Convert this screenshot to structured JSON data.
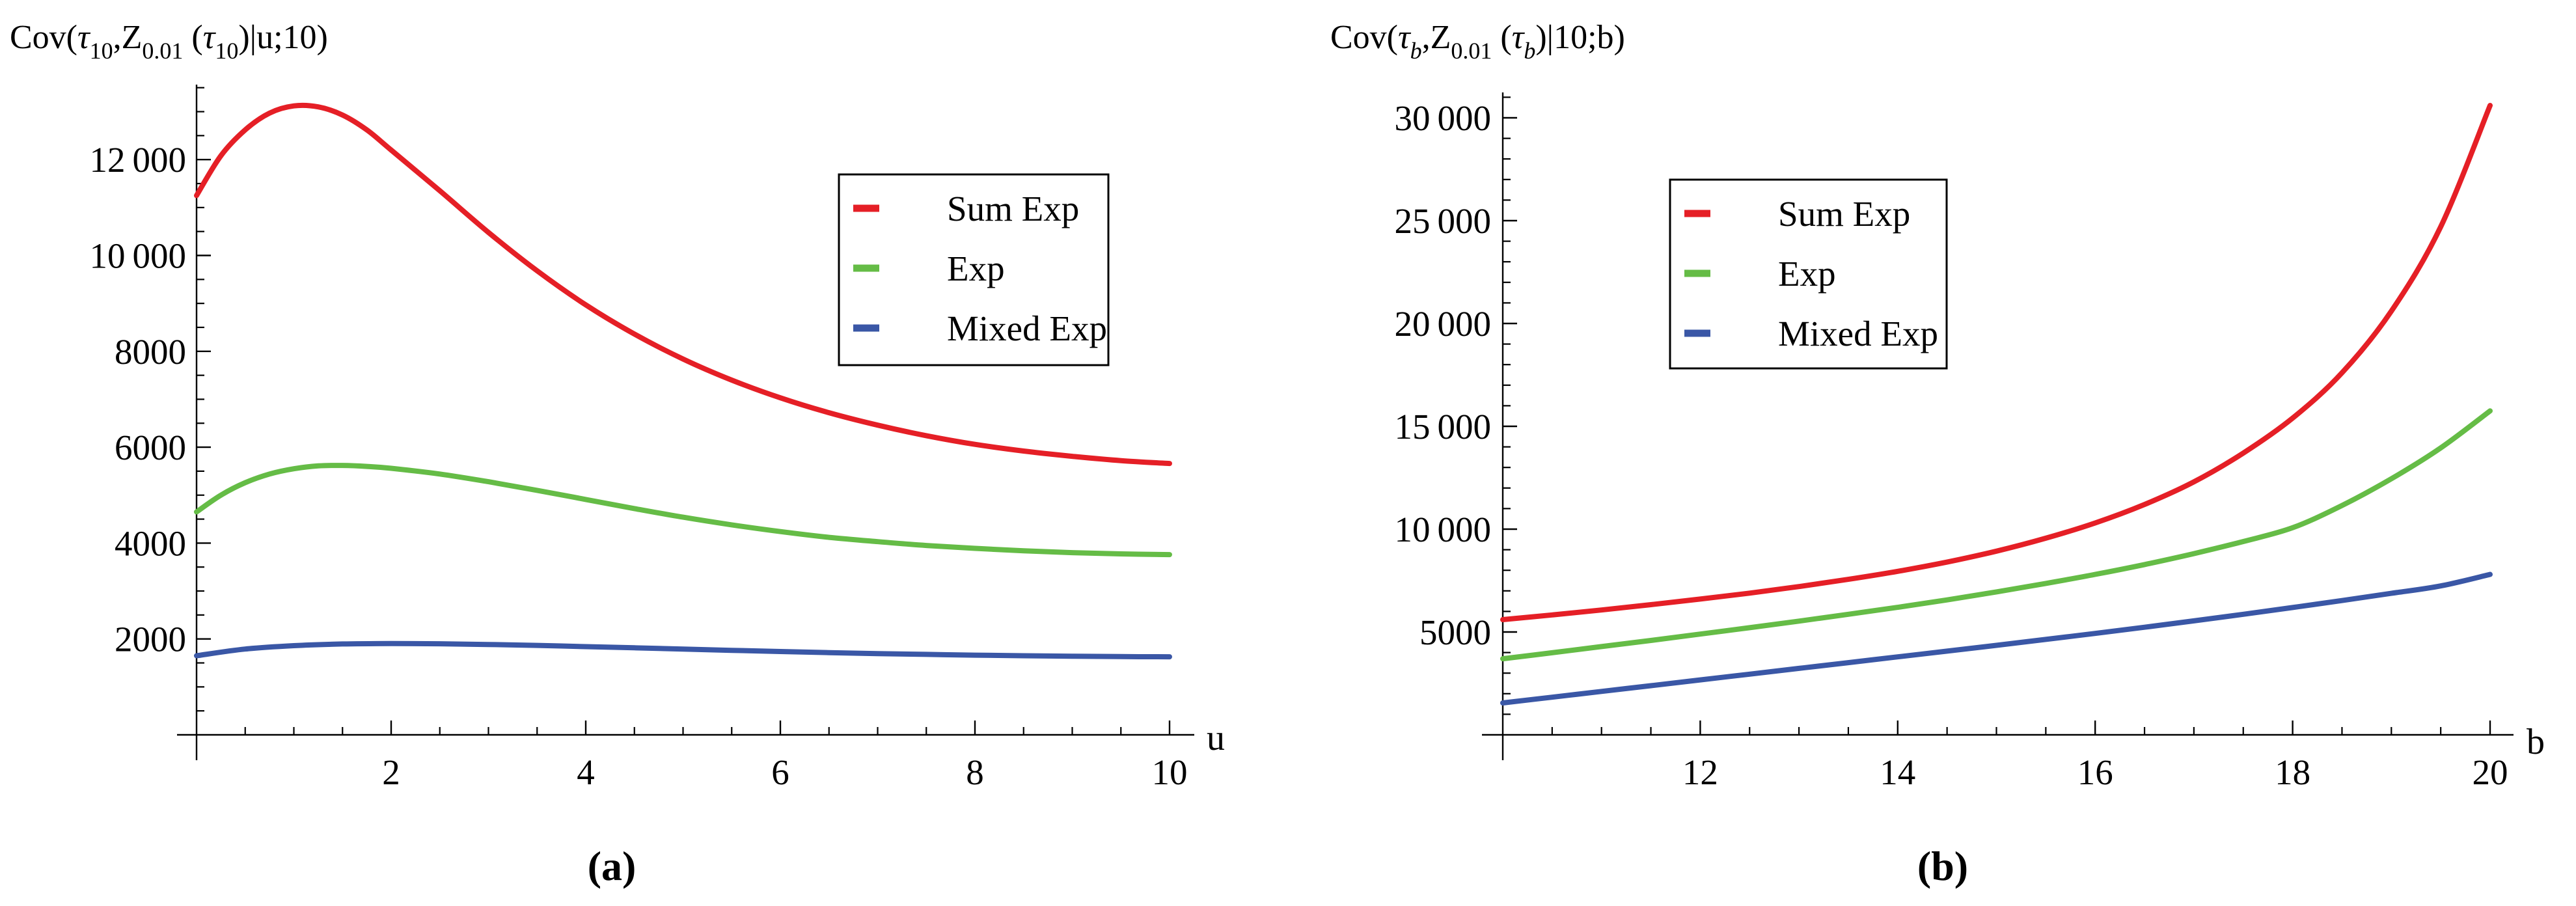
{
  "figure": {
    "background": "#ffffff",
    "axis_color": "#000000",
    "series_colors": {
      "sum_exp": "#e51f26",
      "exp": "#65bc46",
      "mixed_exp": "#3a57a6"
    }
  },
  "chart_data": [
    {
      "id": "a",
      "type": "line",
      "title_text": "Cov(τ10,Z0.01 (τ10)|u;10)",
      "title_segments": [
        {
          "text": "Cov(",
          "style": "normal"
        },
        {
          "text": "τ",
          "style": "italic"
        },
        {
          "text": "10",
          "style": "sub"
        },
        {
          "text": ",Z",
          "style": "normal"
        },
        {
          "text": "0.01",
          "style": "sub"
        },
        {
          "text": " (",
          "style": "normal"
        },
        {
          "text": "τ",
          "style": "italic"
        },
        {
          "text": "10",
          "style": "sub"
        },
        {
          "text": ")|u;10)",
          "style": "normal"
        }
      ],
      "xlabel": "u",
      "ylabel": "",
      "caption": "(a)",
      "xlim": [
        0,
        10
      ],
      "ylim": [
        0,
        13500
      ],
      "grid": false,
      "legend_position": "upper-right-inset",
      "x_ticks": [
        {
          "v": 2,
          "label": "2"
        },
        {
          "v": 4,
          "label": "4"
        },
        {
          "v": 6,
          "label": "6"
        },
        {
          "v": 8,
          "label": "8"
        },
        {
          "v": 10,
          "label": "10"
        }
      ],
      "y_ticks": [
        {
          "v": 2000,
          "label": "2000"
        },
        {
          "v": 4000,
          "label": "4000"
        },
        {
          "v": 6000,
          "label": "6000"
        },
        {
          "v": 8000,
          "label": "8000"
        },
        {
          "v": 10000,
          "label": "10 000"
        },
        {
          "v": 12000,
          "label": "12 000"
        }
      ],
      "x_minor_step": 0.5,
      "y_minor_step": 500,
      "y_minor_max": 13500,
      "series": [
        {
          "name": "Sum Exp",
          "color": "#e51f26",
          "points": [
            [
              0,
              11250
            ],
            [
              0.25,
              12080
            ],
            [
              0.5,
              12620
            ],
            [
              0.75,
              12970
            ],
            [
              1,
              13120
            ],
            [
              1.25,
              13100
            ],
            [
              1.5,
              12930
            ],
            [
              1.75,
              12620
            ],
            [
              2,
              12200
            ],
            [
              2.5,
              11350
            ],
            [
              3,
              10480
            ],
            [
              3.5,
              9680
            ],
            [
              4,
              8970
            ],
            [
              4.5,
              8360
            ],
            [
              5,
              7840
            ],
            [
              5.5,
              7400
            ],
            [
              6,
              7030
            ],
            [
              6.5,
              6720
            ],
            [
              7,
              6460
            ],
            [
              7.5,
              6240
            ],
            [
              8,
              6060
            ],
            [
              8.5,
              5920
            ],
            [
              9,
              5810
            ],
            [
              9.5,
              5720
            ],
            [
              10,
              5660
            ]
          ]
        },
        {
          "name": "Exp",
          "color": "#65bc46",
          "points": [
            [
              0,
              4650
            ],
            [
              0.25,
              5000
            ],
            [
              0.5,
              5260
            ],
            [
              0.75,
              5440
            ],
            [
              1,
              5550
            ],
            [
              1.25,
              5610
            ],
            [
              1.5,
              5620
            ],
            [
              1.75,
              5600
            ],
            [
              2,
              5560
            ],
            [
              2.5,
              5440
            ],
            [
              3,
              5280
            ],
            [
              3.5,
              5100
            ],
            [
              4,
              4910
            ],
            [
              4.5,
              4720
            ],
            [
              5,
              4540
            ],
            [
              5.5,
              4380
            ],
            [
              6,
              4240
            ],
            [
              6.5,
              4120
            ],
            [
              7,
              4030
            ],
            [
              7.5,
              3950
            ],
            [
              8,
              3890
            ],
            [
              8.5,
              3840
            ],
            [
              9,
              3800
            ],
            [
              9.5,
              3775
            ],
            [
              10,
              3760
            ]
          ]
        },
        {
          "name": "Mixed Exp",
          "color": "#3a57a6",
          "points": [
            [
              0,
              1650
            ],
            [
              0.5,
              1790
            ],
            [
              1,
              1860
            ],
            [
              1.5,
              1895
            ],
            [
              2,
              1905
            ],
            [
              2.5,
              1900
            ],
            [
              3,
              1885
            ],
            [
              3.5,
              1865
            ],
            [
              4,
              1840
            ],
            [
              4.5,
              1815
            ],
            [
              5,
              1790
            ],
            [
              5.5,
              1762
            ],
            [
              6,
              1738
            ],
            [
              6.5,
              1715
            ],
            [
              7,
              1695
            ],
            [
              7.5,
              1678
            ],
            [
              8,
              1662
            ],
            [
              8.5,
              1650
            ],
            [
              9,
              1640
            ],
            [
              9.5,
              1632
            ],
            [
              10,
              1628
            ]
          ]
        }
      ]
    },
    {
      "id": "b",
      "type": "line",
      "title_text": "Cov(τb,Z0.01 (τb)|10;b)",
      "title_segments": [
        {
          "text": "Cov(",
          "style": "normal"
        },
        {
          "text": "τ",
          "style": "italic"
        },
        {
          "text": "b",
          "style": "sub-italic"
        },
        {
          "text": ",Z",
          "style": "normal"
        },
        {
          "text": "0.01",
          "style": "sub"
        },
        {
          "text": " (",
          "style": "normal"
        },
        {
          "text": "τ",
          "style": "italic"
        },
        {
          "text": "b",
          "style": "sub-italic"
        },
        {
          "text": ")|10;b)",
          "style": "normal"
        }
      ],
      "xlabel": "b",
      "ylabel": "",
      "caption": "(b)",
      "xlim": [
        10,
        20
      ],
      "ylim": [
        0,
        31000
      ],
      "grid": false,
      "legend_position": "upper-right-inset",
      "x_ticks": [
        {
          "v": 12,
          "label": "12"
        },
        {
          "v": 14,
          "label": "14"
        },
        {
          "v": 16,
          "label": "16"
        },
        {
          "v": 18,
          "label": "18"
        },
        {
          "v": 20,
          "label": "20"
        }
      ],
      "y_ticks": [
        {
          "v": 5000,
          "label": "5000"
        },
        {
          "v": 10000,
          "label": "10 000"
        },
        {
          "v": 15000,
          "label": "15 000"
        },
        {
          "v": 20000,
          "label": "20 000"
        },
        {
          "v": 25000,
          "label": "25 000"
        },
        {
          "v": 30000,
          "label": "30 000"
        }
      ],
      "x_minor_step": 0.5,
      "y_minor_step": 1000,
      "y_minor_max": 31000,
      "series": [
        {
          "name": "Sum Exp",
          "color": "#e51f26",
          "points": [
            [
              10,
              5600
            ],
            [
              10.5,
              5830
            ],
            [
              11,
              6070
            ],
            [
              11.5,
              6330
            ],
            [
              12,
              6600
            ],
            [
              12.5,
              6890
            ],
            [
              13,
              7210
            ],
            [
              13.5,
              7560
            ],
            [
              14,
              7950
            ],
            [
              14.5,
              8400
            ],
            [
              15,
              8930
            ],
            [
              15.5,
              9560
            ],
            [
              16,
              10300
            ],
            [
              16.5,
              11200
            ],
            [
              17,
              12300
            ],
            [
              17.5,
              13700
            ],
            [
              18,
              15400
            ],
            [
              18.5,
              17600
            ],
            [
              19,
              20600
            ],
            [
              19.5,
              24700
            ],
            [
              20,
              30600
            ]
          ]
        },
        {
          "name": "Exp",
          "color": "#65bc46",
          "points": [
            [
              10,
              3700
            ],
            [
              10.5,
              3990
            ],
            [
              11,
              4290
            ],
            [
              11.5,
              4590
            ],
            [
              12,
              4900
            ],
            [
              12.5,
              5210
            ],
            [
              13,
              5530
            ],
            [
              13.5,
              5860
            ],
            [
              14,
              6200
            ],
            [
              14.5,
              6560
            ],
            [
              15,
              6950
            ],
            [
              15.5,
              7360
            ],
            [
              16,
              7800
            ],
            [
              16.5,
              8280
            ],
            [
              17,
              8810
            ],
            [
              17.5,
              9400
            ],
            [
              18,
              10070
            ],
            [
              18.5,
              11150
            ],
            [
              19,
              12450
            ],
            [
              19.5,
              13950
            ],
            [
              20,
              15750
            ]
          ]
        },
        {
          "name": "Mixed Exp",
          "color": "#3a57a6",
          "points": [
            [
              10,
              1550
            ],
            [
              10.5,
              1830
            ],
            [
              11,
              2110
            ],
            [
              11.5,
              2390
            ],
            [
              12,
              2670
            ],
            [
              12.5,
              2950
            ],
            [
              13,
              3230
            ],
            [
              13.5,
              3510
            ],
            [
              14,
              3790
            ],
            [
              14.5,
              4070
            ],
            [
              15,
              4350
            ],
            [
              15.5,
              4640
            ],
            [
              16,
              4930
            ],
            [
              16.5,
              5230
            ],
            [
              17,
              5540
            ],
            [
              17.5,
              5860
            ],
            [
              18,
              6190
            ],
            [
              18.5,
              6530
            ],
            [
              19,
              6880
            ],
            [
              19.5,
              7240
            ],
            [
              20,
              7800
            ]
          ]
        }
      ]
    }
  ],
  "legend": {
    "entries": [
      {
        "label": "Sum Exp",
        "color": "#e51f26"
      },
      {
        "label": "Exp",
        "color": "#65bc46"
      },
      {
        "label": "Mixed Exp",
        "color": "#3a57a6"
      }
    ]
  }
}
